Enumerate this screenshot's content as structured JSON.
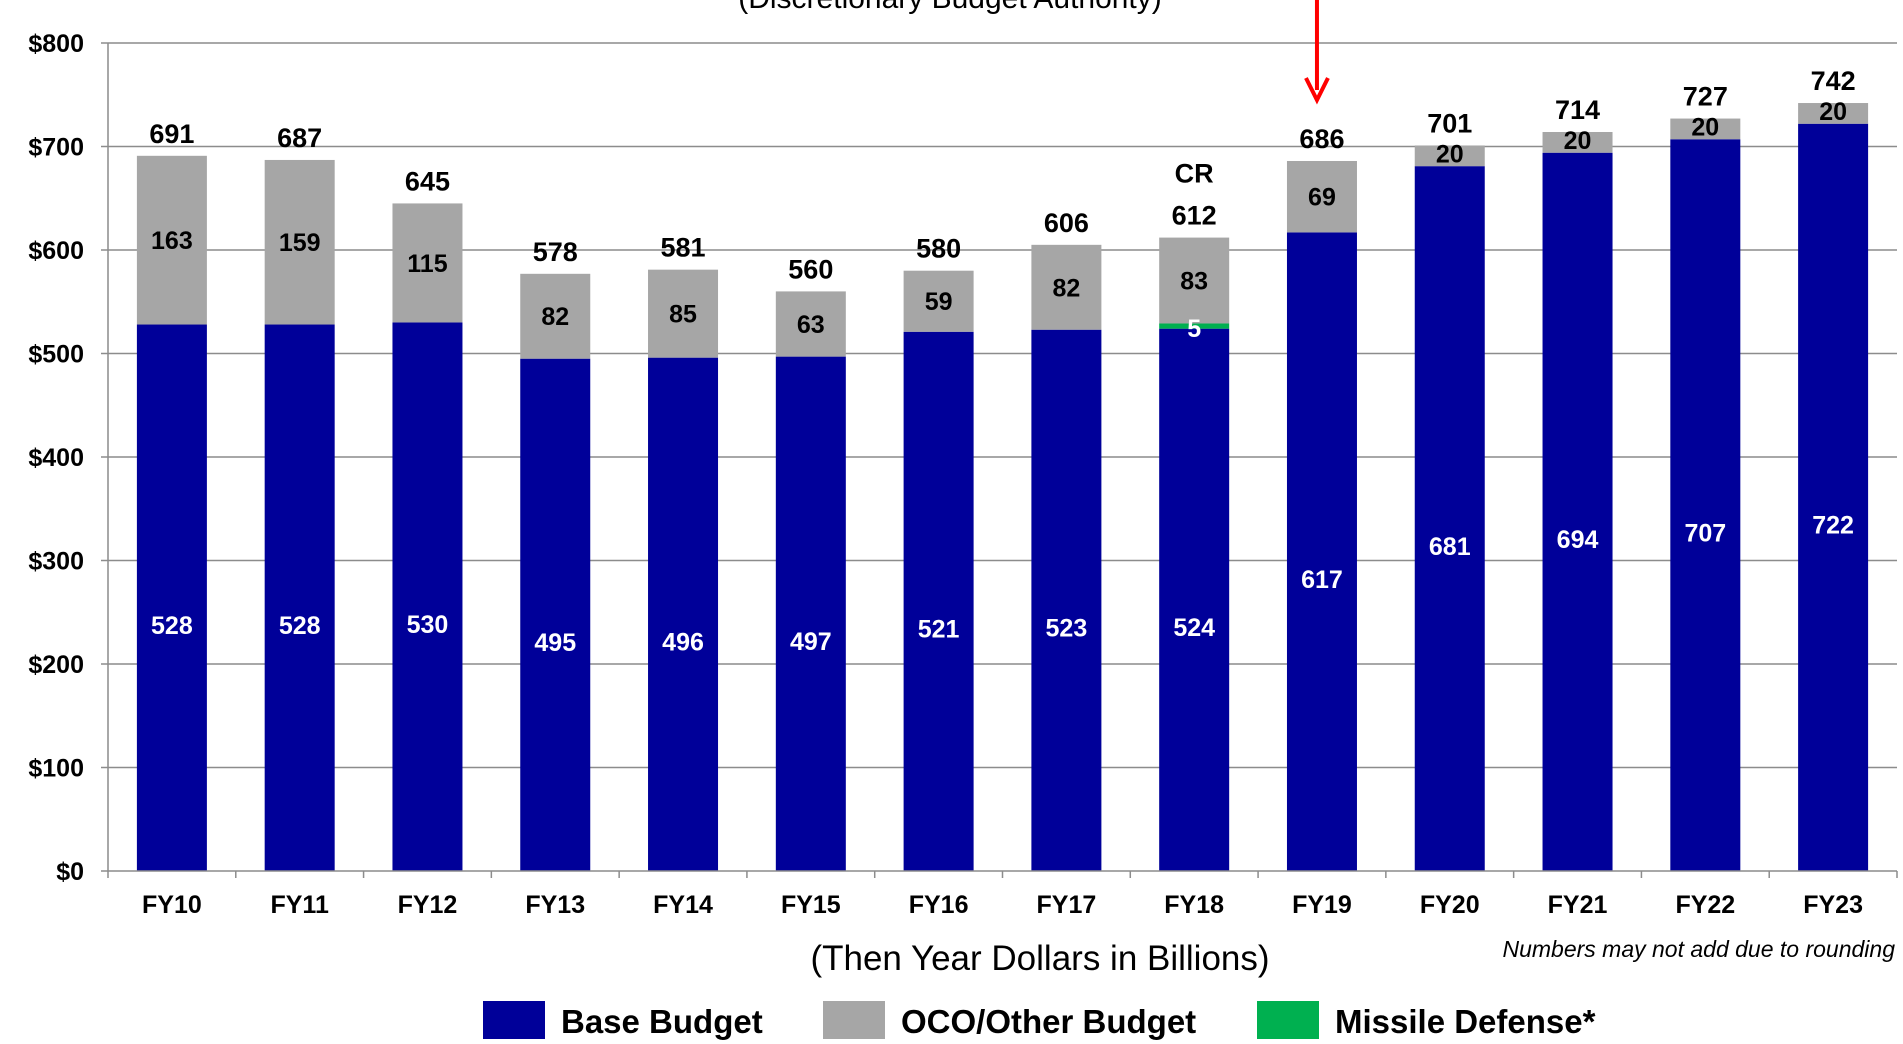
{
  "chart_data": {
    "type": "bar",
    "stacked": true,
    "title": "(Discretionary Budget Authority)",
    "xlabel": "(Then Year Dollars in Billions)",
    "note": "Numbers may not add due to rounding",
    "categories": [
      "FY10",
      "FY11",
      "FY12",
      "FY13",
      "FY14",
      "FY15",
      "FY16",
      "FY17",
      "FY18",
      "FY19",
      "FY20",
      "FY21",
      "FY22",
      "FY23"
    ],
    "series": [
      {
        "name": "Base Budget",
        "color": "#000099",
        "values": [
          528,
          528,
          530,
          495,
          496,
          497,
          521,
          523,
          524,
          617,
          681,
          694,
          707,
          722
        ]
      },
      {
        "name": "Missile Defense*",
        "color": "#00b050",
        "values": [
          0,
          0,
          0,
          0,
          0,
          0,
          0,
          0,
          5,
          0,
          0,
          0,
          0,
          0
        ]
      },
      {
        "name": "OCO/Other  Budget",
        "color": "#a6a6a6",
        "values": [
          163,
          159,
          115,
          82,
          85,
          63,
          59,
          82,
          83,
          69,
          20,
          20,
          20,
          20
        ]
      }
    ],
    "totals": [
      691,
      687,
      645,
      578,
      581,
      560,
      580,
      606,
      612,
      686,
      701,
      714,
      727,
      742
    ],
    "total_prefix": [
      "",
      "",
      "",
      "",
      "",
      "",
      "",
      "",
      "CR",
      "",
      "",
      "",
      "",
      ""
    ],
    "highlight_arrow_category": "FY19",
    "ylim": [
      0,
      800
    ],
    "yticks": [
      0,
      100,
      200,
      300,
      400,
      500,
      600,
      700,
      800
    ],
    "ytick_labels": [
      "$0",
      "$100",
      "$200",
      "$300",
      "$400",
      "$500",
      "$600",
      "$700",
      "$800"
    ],
    "grid": true,
    "legend_position": "bottom"
  }
}
